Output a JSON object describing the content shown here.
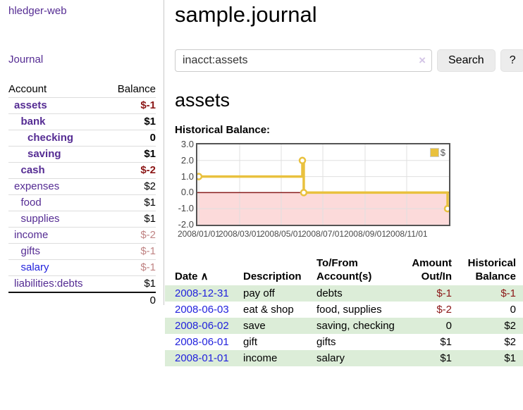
{
  "sidebar": {
    "brand": "hledger-web",
    "nav_journal": "Journal",
    "accounts_table": {
      "header_account": "Account",
      "header_balance": "Balance",
      "rows": [
        {
          "name": "assets",
          "indent": 0,
          "bold": true,
          "balance": "$-1",
          "neg": true
        },
        {
          "name": "bank",
          "indent": 1,
          "bold": true,
          "balance": "$1"
        },
        {
          "name": "checking",
          "indent": 2,
          "bold": true,
          "balance": "0"
        },
        {
          "name": "saving",
          "indent": 2,
          "bold": true,
          "balance": "$1"
        },
        {
          "name": "cash",
          "indent": 1,
          "bold": true,
          "balance": "$-2",
          "neg": true
        },
        {
          "name": "expenses",
          "indent": 0,
          "balance": "$2"
        },
        {
          "name": "food",
          "indent": 1,
          "balance": "$1"
        },
        {
          "name": "supplies",
          "indent": 1,
          "balance": "$1"
        },
        {
          "name": "income",
          "indent": 0,
          "balance": "$-2",
          "soft": true
        },
        {
          "name": "gifts",
          "indent": 1,
          "balance": "$-1",
          "soft": true
        },
        {
          "name": "salary",
          "indent": 1,
          "blue": true,
          "balance": "$-1",
          "soft": true
        },
        {
          "name": "liabilities:debts",
          "indent": 0,
          "balance": "$1"
        }
      ],
      "total": "0"
    }
  },
  "main": {
    "title": "sample.journal",
    "search": {
      "value": "inacct:assets",
      "clear": "×",
      "button": "Search",
      "help": "?"
    },
    "account_heading": "assets",
    "chart_title": "Historical Balance:"
  },
  "chart_data": {
    "type": "line",
    "title": "Historical Balance:",
    "step": true,
    "series": [
      {
        "name": "$",
        "color": "#e9c13e",
        "points": [
          [
            "2008-01-01",
            1
          ],
          [
            "2008-06-01",
            2
          ],
          [
            "2008-06-03",
            0
          ],
          [
            "2008-12-31",
            -1
          ]
        ]
      }
    ],
    "x_ticks": [
      "2008/01/01",
      "2008/03/01",
      "2008/05/01",
      "2008/07/01",
      "2008/09/01",
      "2008/11/01"
    ],
    "x_start": "2008-01-01",
    "x_span_days": 365,
    "y_ticks": [
      "3.0",
      "2.0",
      "1.0",
      "0.0",
      "-1.0",
      "-2.0"
    ],
    "ylim": [
      -2,
      3
    ],
    "grid": true,
    "legend_position": "top-right",
    "legend_label": "$",
    "zero_line_color": "#871c1c",
    "negative_region_color": "#fcdada",
    "grid_color": "#e0e0e0",
    "border_color": "#545454"
  },
  "register": {
    "headers": [
      {
        "l1": "Date",
        "l2": "",
        "align": "left",
        "sortable": true
      },
      {
        "l1": "Description",
        "l2": "",
        "align": "left"
      },
      {
        "l1": "To/From",
        "l2": "Account(s)",
        "align": "left"
      },
      {
        "l1": "Amount",
        "l2": "Out/In",
        "align": "right"
      },
      {
        "l1": "Historical",
        "l2": "Balance",
        "align": "right"
      }
    ],
    "sort_indicator": "∧",
    "rows": [
      {
        "date": "2008-12-31",
        "description": "pay off",
        "accounts": "debts",
        "amount": "$-1",
        "amount_neg": true,
        "balance": "$-1",
        "balance_neg": true,
        "highlight": true
      },
      {
        "date": "2008-06-03",
        "description": "eat & shop",
        "accounts": "food, supplies",
        "amount": "$-2",
        "amount_neg": true,
        "balance": "0"
      },
      {
        "date": "2008-06-02",
        "description": "save",
        "accounts": "saving, checking",
        "amount": "0",
        "balance": "$2",
        "highlight": true
      },
      {
        "date": "2008-06-01",
        "description": "gift",
        "accounts": "gifts",
        "amount": "$1",
        "balance": "$2"
      },
      {
        "date": "2008-01-01",
        "description": "income",
        "accounts": "salary",
        "amount": "$1",
        "balance": "$1",
        "highlight": true
      }
    ]
  }
}
